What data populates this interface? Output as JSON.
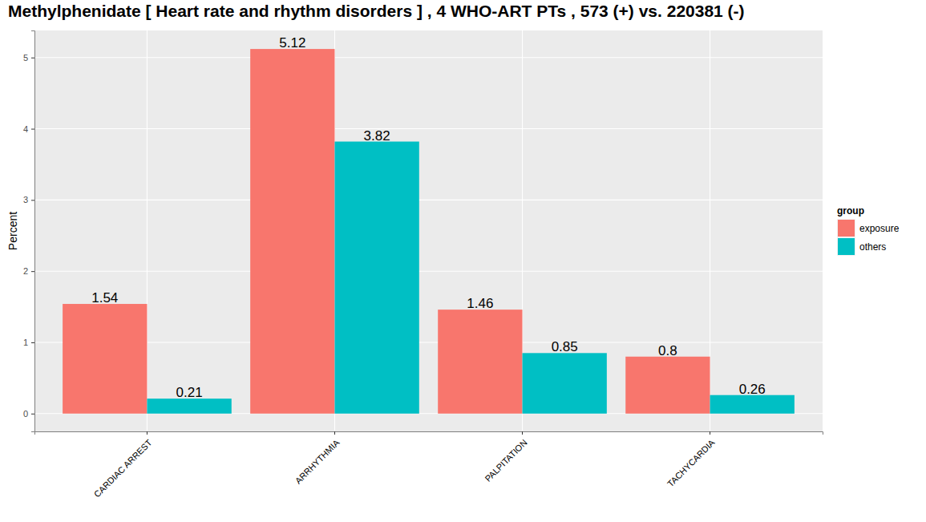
{
  "chart_data": {
    "type": "bar",
    "title": "Methylphenidate [ Heart rate and rhythm disorders ] ,  4 WHO-ART PTs ,  573 (+) vs.  220381 (-)",
    "y_label": "Percent",
    "legend_title": "group",
    "categories": [
      "CARDIAC ARREST",
      "ARRHYTHMIA",
      "PALPITATION",
      "TACHYCARDIA"
    ],
    "series": [
      {
        "name": "exposure",
        "color": "#F8766D",
        "values": [
          1.54,
          5.12,
          1.46,
          0.8
        ]
      },
      {
        "name": "others",
        "color": "#00BFC4",
        "values": [
          0.21,
          3.82,
          0.85,
          0.26
        ]
      }
    ],
    "ylim": [
      -0.25,
      5.38
    ],
    "yticks": [
      0,
      1,
      2,
      3,
      4,
      5
    ],
    "grid": true,
    "legend": "right",
    "data_labels": true
  }
}
